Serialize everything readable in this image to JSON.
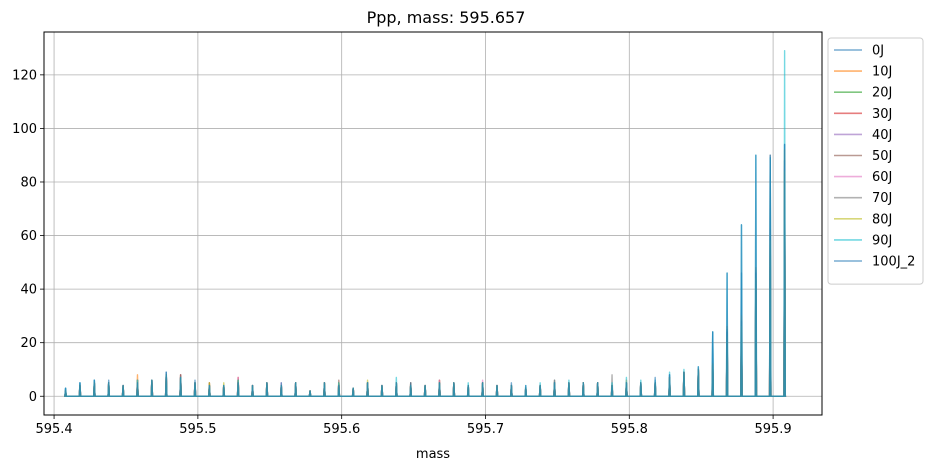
{
  "chart_data": {
    "type": "line",
    "title": "Ppp, mass: 595.657",
    "xlabel": "mass",
    "ylabel": "",
    "xlim": [
      595.393,
      595.934
    ],
    "ylim": [
      -7,
      136
    ],
    "xticks": [
      595.4,
      595.5,
      595.6,
      595.7,
      595.8,
      595.9
    ],
    "xtick_labels": [
      "595.4",
      "595.5",
      "595.6",
      "595.7",
      "595.8",
      "595.9"
    ],
    "yticks": [
      0,
      20,
      40,
      60,
      80,
      100,
      120
    ],
    "ytick_labels": [
      "0",
      "20",
      "40",
      "60",
      "80",
      "100",
      "120"
    ],
    "grid": true,
    "legend_position": "outside-right-top",
    "peak_positions": [
      595.408,
      595.418,
      595.428,
      595.438,
      595.448,
      595.458,
      595.468,
      595.478,
      595.488,
      595.498,
      595.508,
      595.518,
      595.528,
      595.538,
      595.548,
      595.558,
      595.568,
      595.578,
      595.588,
      595.598,
      595.608,
      595.618,
      595.628,
      595.638,
      595.648,
      595.658,
      595.668,
      595.678,
      595.688,
      595.698,
      595.708,
      595.718,
      595.728,
      595.738,
      595.748,
      595.758,
      595.768,
      595.778,
      595.788,
      595.798,
      595.808,
      595.818,
      595.828,
      595.838,
      595.848,
      595.858,
      595.868,
      595.878,
      595.888,
      595.898,
      595.908
    ],
    "series": [
      {
        "name": "0J",
        "color": "#1f77b4",
        "values": [
          3,
          5,
          6,
          5,
          4,
          6,
          6,
          9,
          7,
          5,
          4,
          4,
          5,
          4,
          5,
          4,
          5,
          2,
          4,
          4,
          3,
          5,
          4,
          5,
          4,
          4,
          5,
          5,
          4,
          5,
          4,
          4,
          3,
          4,
          5,
          5,
          5,
          5,
          4,
          5,
          5,
          5,
          8,
          9,
          10,
          24,
          25,
          46,
          47,
          89,
          94
        ]
      },
      {
        "name": "10J",
        "color": "#ff7f0e",
        "values": [
          2,
          4,
          5,
          5,
          3,
          8,
          5,
          7,
          8,
          4,
          5,
          4,
          6,
          3,
          5,
          4,
          4,
          2,
          5,
          5,
          3,
          5,
          3,
          5,
          5,
          4,
          6,
          5,
          3,
          5,
          3,
          4,
          3,
          4,
          6,
          4,
          5,
          4,
          3,
          6,
          4,
          4,
          6,
          8,
          10,
          12,
          26,
          30,
          48,
          60,
          92
        ]
      },
      {
        "name": "20J",
        "color": "#2ca02c",
        "values": [
          2,
          3,
          4,
          4,
          3,
          5,
          5,
          6,
          6,
          4,
          4,
          3,
          5,
          3,
          4,
          3,
          4,
          2,
          4,
          4,
          2,
          5,
          3,
          4,
          4,
          3,
          5,
          4,
          3,
          4,
          3,
          3,
          2,
          3,
          5,
          4,
          4,
          4,
          3,
          5,
          4,
          4,
          6,
          7,
          9,
          10,
          20,
          24,
          40,
          50,
          70
        ]
      },
      {
        "name": "30J",
        "color": "#d62728",
        "values": [
          2,
          4,
          5,
          5,
          4,
          6,
          6,
          8,
          7,
          5,
          4,
          4,
          7,
          4,
          5,
          4,
          5,
          2,
          5,
          5,
          3,
          5,
          4,
          5,
          4,
          4,
          5,
          5,
          4,
          5,
          4,
          4,
          3,
          4,
          5,
          5,
          5,
          5,
          4,
          5,
          5,
          5,
          7,
          9,
          10,
          12,
          22,
          26,
          44,
          55,
          80
        ]
      },
      {
        "name": "40J",
        "color": "#9467bd",
        "values": [
          2,
          4,
          5,
          5,
          4,
          6,
          6,
          8,
          8,
          5,
          4,
          4,
          6,
          4,
          5,
          4,
          5,
          2,
          5,
          5,
          3,
          5,
          4,
          5,
          4,
          4,
          5,
          5,
          4,
          5,
          4,
          4,
          3,
          4,
          5,
          5,
          5,
          5,
          4,
          5,
          5,
          5,
          7,
          9,
          10,
          12,
          22,
          26,
          44,
          60,
          85
        ]
      },
      {
        "name": "50J",
        "color": "#8c564b",
        "values": [
          2,
          4,
          5,
          5,
          4,
          6,
          6,
          8,
          8,
          5,
          5,
          4,
          6,
          4,
          5,
          4,
          5,
          2,
          5,
          6,
          3,
          5,
          4,
          5,
          5,
          4,
          6,
          5,
          4,
          5,
          4,
          4,
          3,
          4,
          5,
          5,
          5,
          5,
          4,
          5,
          5,
          5,
          7,
          9,
          10,
          12,
          24,
          28,
          46,
          62,
          88
        ]
      },
      {
        "name": "60J",
        "color": "#e377c2",
        "values": [
          2,
          4,
          5,
          5,
          4,
          6,
          6,
          8,
          7,
          5,
          4,
          4,
          7,
          4,
          5,
          5,
          5,
          2,
          5,
          5,
          3,
          5,
          4,
          5,
          4,
          4,
          6,
          5,
          4,
          6,
          4,
          4,
          3,
          4,
          5,
          5,
          5,
          5,
          4,
          5,
          5,
          5,
          7,
          9,
          10,
          12,
          22,
          26,
          44,
          58,
          86
        ]
      },
      {
        "name": "70J",
        "color": "#7f7f7f",
        "values": [
          2,
          4,
          5,
          5,
          4,
          6,
          6,
          8,
          7,
          5,
          4,
          4,
          6,
          4,
          5,
          4,
          5,
          2,
          5,
          5,
          3,
          5,
          4,
          5,
          4,
          4,
          5,
          5,
          4,
          5,
          4,
          4,
          3,
          4,
          5,
          5,
          5,
          5,
          8,
          5,
          5,
          5,
          7,
          9,
          10,
          12,
          24,
          28,
          46,
          90,
          88
        ]
      },
      {
        "name": "80J",
        "color": "#bcbd22",
        "values": [
          2,
          4,
          5,
          5,
          4,
          6,
          6,
          8,
          7,
          5,
          5,
          5,
          6,
          4,
          5,
          4,
          5,
          2,
          5,
          5,
          3,
          6,
          4,
          5,
          4,
          4,
          5,
          5,
          4,
          5,
          4,
          4,
          3,
          4,
          5,
          5,
          5,
          5,
          4,
          5,
          5,
          5,
          7,
          9,
          10,
          12,
          22,
          26,
          44,
          58,
          84
        ]
      },
      {
        "name": "90J",
        "color": "#17becf",
        "values": [
          3,
          5,
          6,
          5,
          4,
          6,
          6,
          8,
          7,
          5,
          4,
          4,
          6,
          4,
          5,
          4,
          5,
          2,
          5,
          5,
          3,
          5,
          4,
          7,
          4,
          4,
          5,
          5,
          5,
          5,
          4,
          4,
          4,
          5,
          5,
          6,
          5,
          5,
          5,
          7,
          6,
          6,
          9,
          10,
          11,
          24,
          46,
          64,
          90,
          89,
          129
        ]
      },
      {
        "name": "100J_2",
        "color": "#1f77b4",
        "values": [
          3,
          5,
          6,
          6,
          4,
          5,
          6,
          9,
          7,
          6,
          4,
          4,
          5,
          4,
          5,
          5,
          5,
          2,
          5,
          4,
          3,
          5,
          4,
          5,
          5,
          4,
          5,
          5,
          4,
          5,
          4,
          5,
          4,
          4,
          6,
          5,
          5,
          5,
          4,
          5,
          5,
          7,
          8,
          9,
          11,
          24,
          46,
          64,
          90,
          90,
          94
        ]
      }
    ]
  }
}
